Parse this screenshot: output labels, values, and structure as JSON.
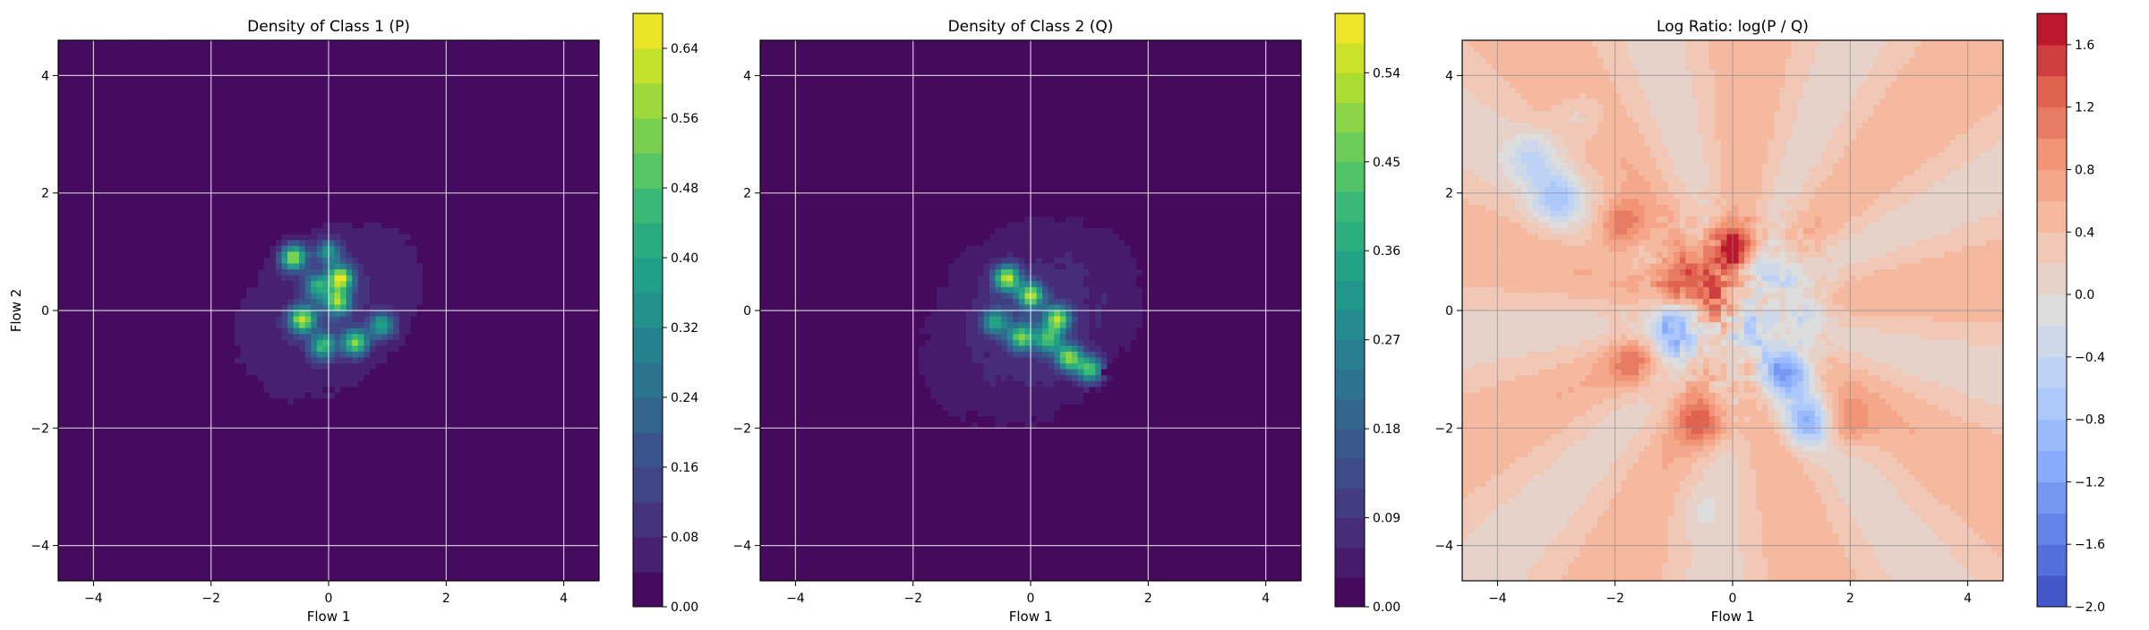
{
  "chart_data": [
    {
      "type": "heatmap",
      "title": "Density of Class 1 (P)",
      "xlabel": "Flow 1",
      "ylabel": "Flow 2",
      "xlim": [
        -4.6,
        4.6
      ],
      "ylim": [
        -4.6,
        4.6
      ],
      "xticks": [
        -4,
        -2,
        0,
        2,
        4
      ],
      "yticks": [
        -4,
        -2,
        0,
        2,
        4
      ],
      "grid": true,
      "colormap": "viridis",
      "colorbar": {
        "min": 0.0,
        "max": 0.68,
        "ticks": [
          "0.00",
          "0.08",
          "0.16",
          "0.24",
          "0.32",
          "0.40",
          "0.48",
          "0.56",
          "0.64"
        ],
        "levels": 17
      },
      "blob": {
        "center": [
          0.0,
          0.0
        ],
        "extent_x": [
          -2.0,
          2.0
        ],
        "extent_y": [
          -1.9,
          1.9
        ]
      },
      "peaks": [
        {
          "x": -0.6,
          "y": 0.9,
          "v": 0.55
        },
        {
          "x": 0.2,
          "y": 0.55,
          "v": 0.6
        },
        {
          "x": 0.15,
          "y": 0.15,
          "v": 0.5
        },
        {
          "x": -0.45,
          "y": -0.15,
          "v": 0.55
        },
        {
          "x": 0.45,
          "y": -0.55,
          "v": 0.5
        },
        {
          "x": -0.2,
          "y": 0.4,
          "v": 0.35
        },
        {
          "x": 0.9,
          "y": -0.25,
          "v": 0.35
        },
        {
          "x": -0.1,
          "y": -0.6,
          "v": 0.4
        },
        {
          "x": 0.0,
          "y": 1.0,
          "v": 0.3
        }
      ]
    },
    {
      "type": "heatmap",
      "title": "Density of Class 2 (Q)",
      "xlabel": "Flow 1",
      "ylabel": "",
      "xlim": [
        -4.6,
        4.6
      ],
      "ylim": [
        -4.6,
        4.6
      ],
      "xticks": [
        -4,
        -2,
        0,
        2,
        4
      ],
      "yticks": [
        -4,
        -2,
        0,
        2,
        4
      ],
      "grid": true,
      "colormap": "viridis",
      "colorbar": {
        "min": 0.0,
        "max": 0.6,
        "ticks": [
          "0.00",
          "0.09",
          "0.18",
          "0.27",
          "0.36",
          "0.45",
          "0.54"
        ],
        "levels": 20
      },
      "blob": {
        "center": [
          0.0,
          0.0
        ],
        "extent_x": [
          -2.0,
          2.0
        ],
        "extent_y": [
          -2.3,
          1.9
        ]
      },
      "peaks": [
        {
          "x": -0.4,
          "y": 0.55,
          "v": 0.5
        },
        {
          "x": 0.0,
          "y": 0.25,
          "v": 0.45
        },
        {
          "x": 0.45,
          "y": -0.15,
          "v": 0.45
        },
        {
          "x": 0.65,
          "y": -0.8,
          "v": 0.45
        },
        {
          "x": 1.0,
          "y": -1.0,
          "v": 0.4
        },
        {
          "x": -0.15,
          "y": -0.45,
          "v": 0.4
        },
        {
          "x": 0.3,
          "y": -0.5,
          "v": 0.35
        },
        {
          "x": -0.6,
          "y": -0.2,
          "v": 0.3
        }
      ]
    },
    {
      "type": "heatmap",
      "title": "Log Ratio: log(P / Q)",
      "xlabel": "Flow 1",
      "ylabel": "",
      "xlim": [
        -4.6,
        4.6
      ],
      "ylim": [
        -4.6,
        4.6
      ],
      "xticks": [
        -4,
        -2,
        0,
        2,
        4
      ],
      "yticks": [
        -4,
        -2,
        0,
        2,
        4
      ],
      "grid": true,
      "colormap": "coolwarm",
      "colorbar": {
        "min": -2.0,
        "max": 1.8,
        "ticks": [
          "−2.0",
          "−1.6",
          "−1.2",
          "−0.8",
          "−0.4",
          "0.0",
          "0.4",
          "0.8",
          "1.2",
          "1.6"
        ],
        "levels": 19
      },
      "background_value": 0.35,
      "features": [
        {
          "x": 0.0,
          "y": 1.05,
          "v": 1.4
        },
        {
          "x": -1.9,
          "y": 1.45,
          "v": 1.0
        },
        {
          "x": -0.9,
          "y": 0.6,
          "v": 1.0
        },
        {
          "x": -0.3,
          "y": 0.2,
          "v": 0.8
        },
        {
          "x": -1.7,
          "y": -0.9,
          "v": 0.6
        },
        {
          "x": -0.5,
          "y": -1.9,
          "v": 1.0
        },
        {
          "x": 1.9,
          "y": -1.9,
          "v": 0.7
        },
        {
          "x": -1.0,
          "y": -0.4,
          "v": -1.5
        },
        {
          "x": 0.9,
          "y": -1.05,
          "v": -1.6
        },
        {
          "x": 1.3,
          "y": -1.9,
          "v": -1.2
        },
        {
          "x": 0.6,
          "y": 0.7,
          "v": -0.9
        },
        {
          "x": 0.3,
          "y": -0.3,
          "v": -0.9
        },
        {
          "x": -3.0,
          "y": 1.9,
          "v": -0.9
        },
        {
          "x": -3.4,
          "y": 2.6,
          "v": -0.6
        },
        {
          "x": -2.6,
          "y": 3.3,
          "v": -0.4
        },
        {
          "x": 1.2,
          "y": 0.0,
          "v": -0.6
        },
        {
          "x": -0.6,
          "y": -3.4,
          "v": -0.2
        }
      ]
    }
  ]
}
